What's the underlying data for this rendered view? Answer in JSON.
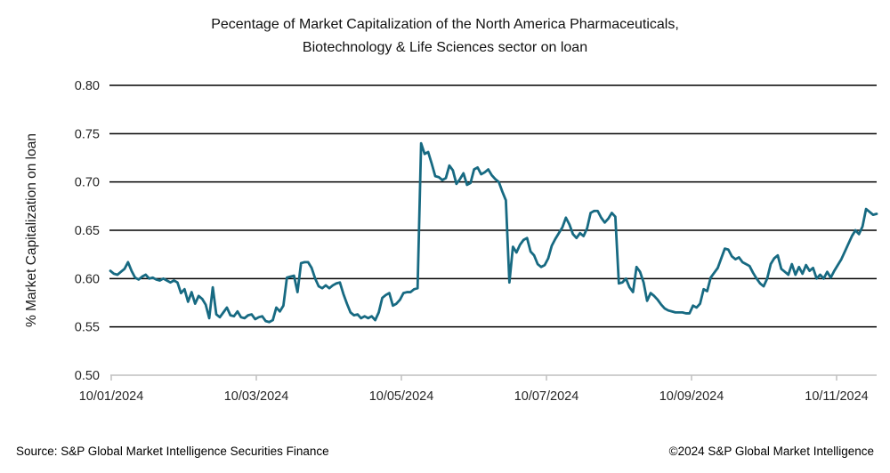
{
  "chart_data": {
    "type": "line",
    "title_lines": [
      "Pecentage of Market Capitalization of the North America Pharmaceuticals,",
      "Biotechnology & Life Sciences sector on loan"
    ],
    "ylabel": "% Market Capitalization on loan",
    "xlabel": "",
    "ylim": [
      0.5,
      0.8
    ],
    "y_ticks": [
      0.5,
      0.55,
      0.6,
      0.65,
      0.7,
      0.75,
      0.8
    ],
    "y_tick_labels": [
      "0.50",
      "0.55",
      "0.60",
      "0.65",
      "0.70",
      "0.75",
      "0.80"
    ],
    "x_tick_labels": [
      "10/01/2024",
      "10/03/2024",
      "10/05/2024",
      "10/07/2024",
      "10/09/2024",
      "10/11/2024"
    ],
    "grid": true,
    "legend_position": "none",
    "colors": {
      "line": "#176A82",
      "gridline": "#000000",
      "axis_line": "#BFBFBF",
      "text": "#262626"
    },
    "series": [
      {
        "name": "% Market Capitalization on loan",
        "values": [
          0.608,
          0.605,
          0.604,
          0.607,
          0.61,
          0.617,
          0.608,
          0.601,
          0.599,
          0.602,
          0.604,
          0.6,
          0.601,
          0.599,
          0.598,
          0.6,
          0.598,
          0.596,
          0.598,
          0.596,
          0.585,
          0.589,
          0.576,
          0.586,
          0.574,
          0.582,
          0.579,
          0.573,
          0.559,
          0.591,
          0.563,
          0.56,
          0.565,
          0.57,
          0.562,
          0.561,
          0.566,
          0.56,
          0.559,
          0.562,
          0.563,
          0.558,
          0.56,
          0.561,
          0.556,
          0.555,
          0.557,
          0.57,
          0.566,
          0.572,
          0.601,
          0.602,
          0.603,
          0.586,
          0.616,
          0.617,
          0.617,
          0.611,
          0.6,
          0.592,
          0.59,
          0.593,
          0.59,
          0.593,
          0.595,
          0.596,
          0.584,
          0.574,
          0.565,
          0.562,
          0.563,
          0.559,
          0.561,
          0.559,
          0.561,
          0.557,
          0.565,
          0.58,
          0.583,
          0.585,
          0.572,
          0.574,
          0.578,
          0.585,
          0.586,
          0.586,
          0.589,
          0.59,
          0.74,
          0.729,
          0.731,
          0.719,
          0.706,
          0.705,
          0.702,
          0.704,
          0.717,
          0.712,
          0.698,
          0.703,
          0.709,
          0.697,
          0.699,
          0.713,
          0.715,
          0.708,
          0.71,
          0.713,
          0.707,
          0.703,
          0.7,
          0.69,
          0.681,
          0.596,
          0.633,
          0.627,
          0.635,
          0.64,
          0.642,
          0.628,
          0.624,
          0.615,
          0.612,
          0.614,
          0.621,
          0.634,
          0.641,
          0.647,
          0.653,
          0.663,
          0.656,
          0.646,
          0.642,
          0.647,
          0.644,
          0.652,
          0.668,
          0.67,
          0.67,
          0.663,
          0.658,
          0.662,
          0.668,
          0.664,
          0.595,
          0.596,
          0.6,
          0.591,
          0.586,
          0.612,
          0.607,
          0.596,
          0.577,
          0.585,
          0.582,
          0.578,
          0.573,
          0.569,
          0.567,
          0.566,
          0.565,
          0.565,
          0.565,
          0.564,
          0.564,
          0.572,
          0.57,
          0.574,
          0.589,
          0.587,
          0.601,
          0.606,
          0.611,
          0.621,
          0.631,
          0.63,
          0.623,
          0.62,
          0.622,
          0.617,
          0.615,
          0.613,
          0.606,
          0.6,
          0.595,
          0.592,
          0.6,
          0.615,
          0.621,
          0.624,
          0.61,
          0.607,
          0.604,
          0.615,
          0.604,
          0.612,
          0.605,
          0.614,
          0.608,
          0.611,
          0.6,
          0.604,
          0.6,
          0.607,
          0.601,
          0.608,
          0.614,
          0.62,
          0.628,
          0.636,
          0.644,
          0.65,
          0.646,
          0.654,
          0.672,
          0.669,
          0.666,
          0.667
        ]
      }
    ]
  },
  "footer": {
    "source": "Source: S&P Global Market Intelligence Securities Finance",
    "copyright": "©2024 S&P Global Market Intelligence"
  }
}
